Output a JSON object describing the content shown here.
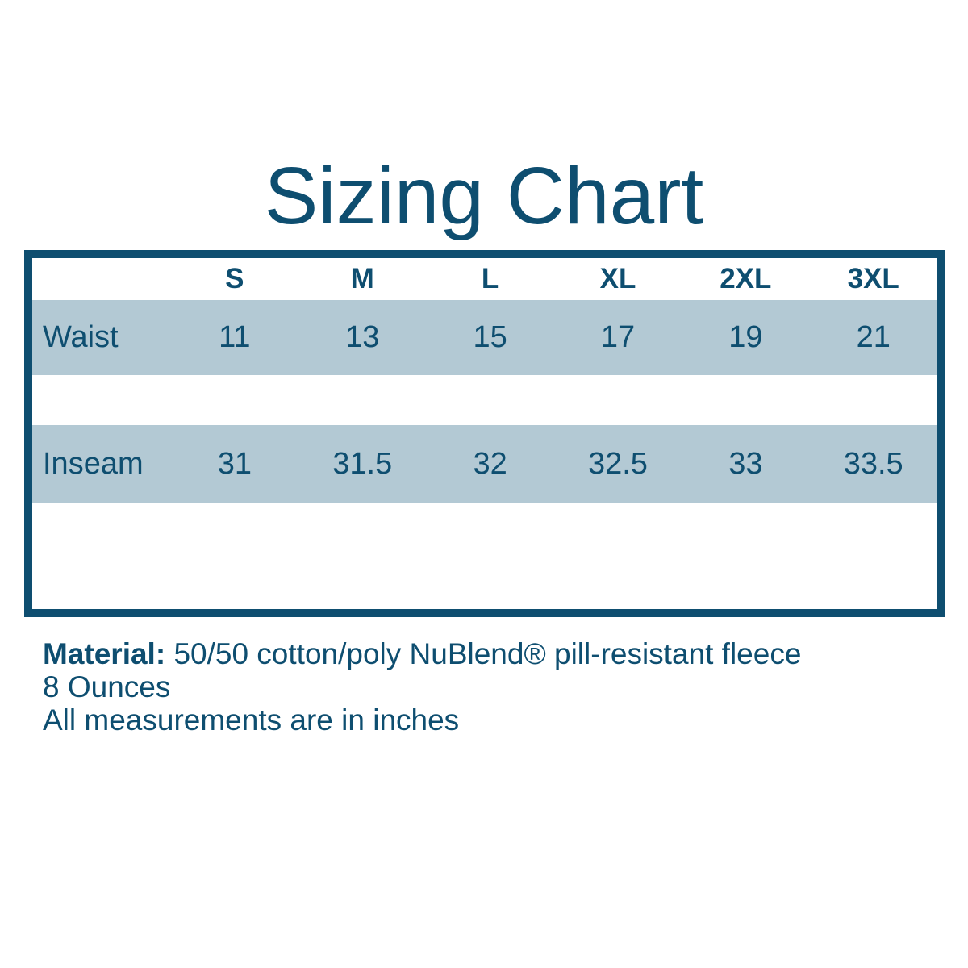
{
  "title": "Sizing Chart",
  "colors": {
    "dark_blue": "#0e4e70",
    "light_blue": "#b3c9d4",
    "background": "#ffffff"
  },
  "table": {
    "size_headers": [
      "S",
      "M",
      "L",
      "XL",
      "2XL",
      "3XL"
    ],
    "rows": [
      {
        "label": "Waist",
        "values": [
          "11",
          "13",
          "15",
          "17",
          "19",
          "21"
        ]
      },
      {
        "label": "Inseam",
        "values": [
          "31",
          "31.5",
          "32",
          "32.5",
          "33",
          "33.5"
        ]
      }
    ]
  },
  "notes": {
    "material_label": "Material:",
    "material_value": "50/50 cotton/poly NuBlend® pill-resistant fleece",
    "weight": "8 Ounces",
    "measurements_note": "All measurements are in inches"
  },
  "chart_data": {
    "type": "table",
    "title": "Sizing Chart",
    "columns": [
      "",
      "S",
      "M",
      "L",
      "XL",
      "2XL",
      "3XL"
    ],
    "rows": [
      [
        "Waist",
        11,
        13,
        15,
        17,
        19,
        21
      ],
      [
        "Inseam",
        31,
        31.5,
        32,
        32.5,
        33,
        33.5
      ]
    ],
    "footnotes": [
      "Material: 50/50 cotton/poly NuBlend® pill-resistant fleece",
      "8 Ounces",
      "All measurements are in inches"
    ]
  }
}
